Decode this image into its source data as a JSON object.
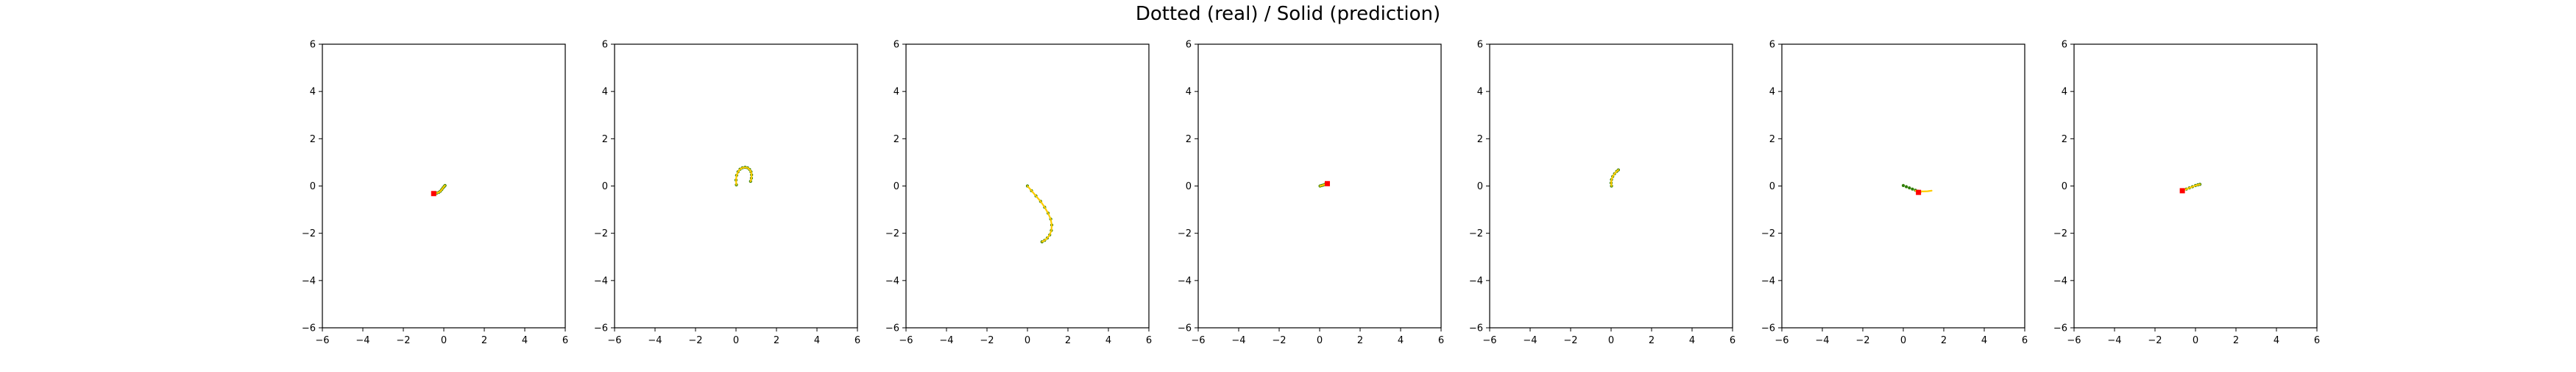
{
  "figure": {
    "title": "Dotted (real) / Solid (prediction)"
  },
  "colors": {
    "real": "#2e7d00",
    "real_alt": "#556b00",
    "prediction": "#ffcc00",
    "start_marker": "#ff0000",
    "axes": "#000000"
  },
  "chart_data": [
    {
      "type": "line",
      "xlim": [
        -6,
        6
      ],
      "ylim": [
        -6,
        6
      ],
      "xticks": [
        -6,
        -4,
        -2,
        0,
        2,
        4,
        6
      ],
      "yticks": [
        -6,
        -4,
        -2,
        0,
        2,
        4,
        6
      ],
      "grid": false,
      "series": [
        {
          "style": "dotted",
          "x": [
            -0.45,
            -0.35,
            -0.25,
            -0.17,
            -0.1,
            -0.04,
            0.02,
            0.06
          ],
          "y": [
            -0.32,
            -0.3,
            -0.27,
            -0.22,
            -0.15,
            -0.08,
            -0.02,
            0.02
          ]
        },
        {
          "style": "solid",
          "x": [
            -0.45,
            -0.35,
            -0.25,
            -0.17,
            -0.1,
            -0.04,
            0.02,
            0.06
          ],
          "y": [
            -0.32,
            -0.3,
            -0.27,
            -0.22,
            -0.15,
            -0.08,
            -0.02,
            0.02
          ]
        }
      ],
      "start": {
        "x": -0.5,
        "y": -0.32
      }
    },
    {
      "type": "line",
      "xlim": [
        -6,
        6
      ],
      "ylim": [
        -6,
        6
      ],
      "xticks": [
        -6,
        -4,
        -2,
        0,
        2,
        4,
        6
      ],
      "yticks": [
        -6,
        -4,
        -2,
        0,
        2,
        4,
        6
      ],
      "grid": false,
      "series": [
        {
          "style": "dotted",
          "x": [
            0.02,
            0.0,
            0.03,
            0.1,
            0.2,
            0.32,
            0.45,
            0.57,
            0.67,
            0.74,
            0.77,
            0.76,
            0.72
          ],
          "y": [
            0.05,
            0.25,
            0.45,
            0.6,
            0.71,
            0.77,
            0.79,
            0.77,
            0.7,
            0.6,
            0.47,
            0.33,
            0.2
          ]
        },
        {
          "style": "solid",
          "x": [
            0.02,
            0.0,
            0.03,
            0.1,
            0.2,
            0.32,
            0.45,
            0.57,
            0.67,
            0.74,
            0.77,
            0.76,
            0.72
          ],
          "y": [
            0.05,
            0.25,
            0.45,
            0.6,
            0.71,
            0.77,
            0.79,
            0.77,
            0.7,
            0.6,
            0.47,
            0.33,
            0.2
          ]
        }
      ]
    },
    {
      "type": "line",
      "xlim": [
        -6,
        6
      ],
      "ylim": [
        -6,
        6
      ],
      "xticks": [
        -6,
        -4,
        -2,
        0,
        2,
        4,
        6
      ],
      "yticks": [
        -6,
        -4,
        -2,
        0,
        2,
        4,
        6
      ],
      "grid": false,
      "series": [
        {
          "style": "dotted",
          "x": [
            0.0,
            0.2,
            0.42,
            0.65,
            0.85,
            1.02,
            1.15,
            1.2,
            1.18,
            1.1,
            0.98,
            0.85,
            0.72
          ],
          "y": [
            0.0,
            -0.2,
            -0.42,
            -0.65,
            -0.9,
            -1.15,
            -1.4,
            -1.65,
            -1.88,
            -2.07,
            -2.2,
            -2.3,
            -2.36
          ]
        },
        {
          "style": "solid",
          "x": [
            0.0,
            0.2,
            0.42,
            0.65,
            0.85,
            1.02,
            1.15,
            1.2,
            1.18,
            1.1,
            0.98,
            0.85,
            0.72
          ],
          "y": [
            0.0,
            -0.2,
            -0.42,
            -0.65,
            -0.9,
            -1.15,
            -1.4,
            -1.65,
            -1.88,
            -2.07,
            -2.2,
            -2.3,
            -2.36
          ]
        }
      ]
    },
    {
      "type": "line",
      "xlim": [
        -6,
        6
      ],
      "ylim": [
        -6,
        6
      ],
      "xticks": [
        -6,
        -4,
        -2,
        0,
        2,
        4,
        6
      ],
      "yticks": [
        -6,
        -4,
        -2,
        0,
        2,
        4,
        6
      ],
      "grid": false,
      "series": [
        {
          "style": "dotted",
          "x": [
            0.02,
            0.1,
            0.18,
            0.26,
            0.34,
            0.42
          ],
          "y": [
            0.0,
            0.02,
            0.04,
            0.07,
            0.09,
            0.12
          ]
        },
        {
          "style": "solid",
          "x": [
            0.02,
            0.1,
            0.18,
            0.26,
            0.34,
            0.42
          ],
          "y": [
            0.0,
            0.02,
            0.04,
            0.07,
            0.09,
            0.12
          ]
        }
      ],
      "start": {
        "x": 0.38,
        "y": 0.1
      }
    },
    {
      "type": "line",
      "xlim": [
        -6,
        6
      ],
      "ylim": [
        -6,
        6
      ],
      "xticks": [
        -6,
        -4,
        -2,
        0,
        2,
        4,
        6
      ],
      "yticks": [
        -6,
        -4,
        -2,
        0,
        2,
        4,
        6
      ],
      "grid": false,
      "series": [
        {
          "style": "dotted",
          "x": [
            0.02,
            0.0,
            0.02,
            0.08,
            0.17,
            0.28,
            0.36
          ],
          "y": [
            0.0,
            0.13,
            0.27,
            0.4,
            0.52,
            0.62,
            0.68
          ]
        },
        {
          "style": "solid",
          "x": [
            0.02,
            0.0,
            0.02,
            0.08,
            0.17,
            0.28,
            0.36
          ],
          "y": [
            0.0,
            0.13,
            0.27,
            0.4,
            0.52,
            0.62,
            0.68
          ]
        }
      ]
    },
    {
      "type": "line",
      "xlim": [
        -6,
        6
      ],
      "ylim": [
        -6,
        6
      ],
      "xticks": [
        -6,
        -4,
        -2,
        0,
        2,
        4,
        6
      ],
      "yticks": [
        -6,
        -4,
        -2,
        0,
        2,
        4,
        6
      ],
      "grid": false,
      "series": [
        {
          "style": "dotted",
          "x": [
            0.0,
            0.15,
            0.3,
            0.45,
            0.6,
            0.72,
            0.82
          ],
          "y": [
            0.02,
            -0.03,
            -0.08,
            -0.13,
            -0.18,
            -0.22,
            -0.25
          ]
        },
        {
          "style": "solid",
          "x": [
            0.6,
            0.8,
            1.0,
            1.2,
            1.4
          ],
          "y": [
            -0.2,
            -0.22,
            -0.23,
            -0.22,
            -0.2
          ]
        }
      ],
      "start": {
        "x": 0.75,
        "y": -0.27
      }
    },
    {
      "type": "line",
      "xlim": [
        -6,
        6
      ],
      "ylim": [
        -6,
        6
      ],
      "xticks": [
        -6,
        -4,
        -2,
        0,
        2,
        4,
        6
      ],
      "yticks": [
        -6,
        -4,
        -2,
        0,
        2,
        4,
        6
      ],
      "grid": false,
      "series": [
        {
          "style": "dotted",
          "x": [
            -0.6,
            -0.45,
            -0.3,
            -0.15,
            0.0,
            0.12,
            0.22
          ],
          "y": [
            -0.18,
            -0.13,
            -0.08,
            -0.03,
            0.02,
            0.05,
            0.07
          ]
        },
        {
          "style": "solid",
          "x": [
            -0.6,
            -0.45,
            -0.3,
            -0.15,
            0.0,
            0.12,
            0.22
          ],
          "y": [
            -0.18,
            -0.13,
            -0.08,
            -0.03,
            0.02,
            0.05,
            0.07
          ]
        }
      ],
      "start": {
        "x": -0.65,
        "y": -0.2
      }
    }
  ]
}
